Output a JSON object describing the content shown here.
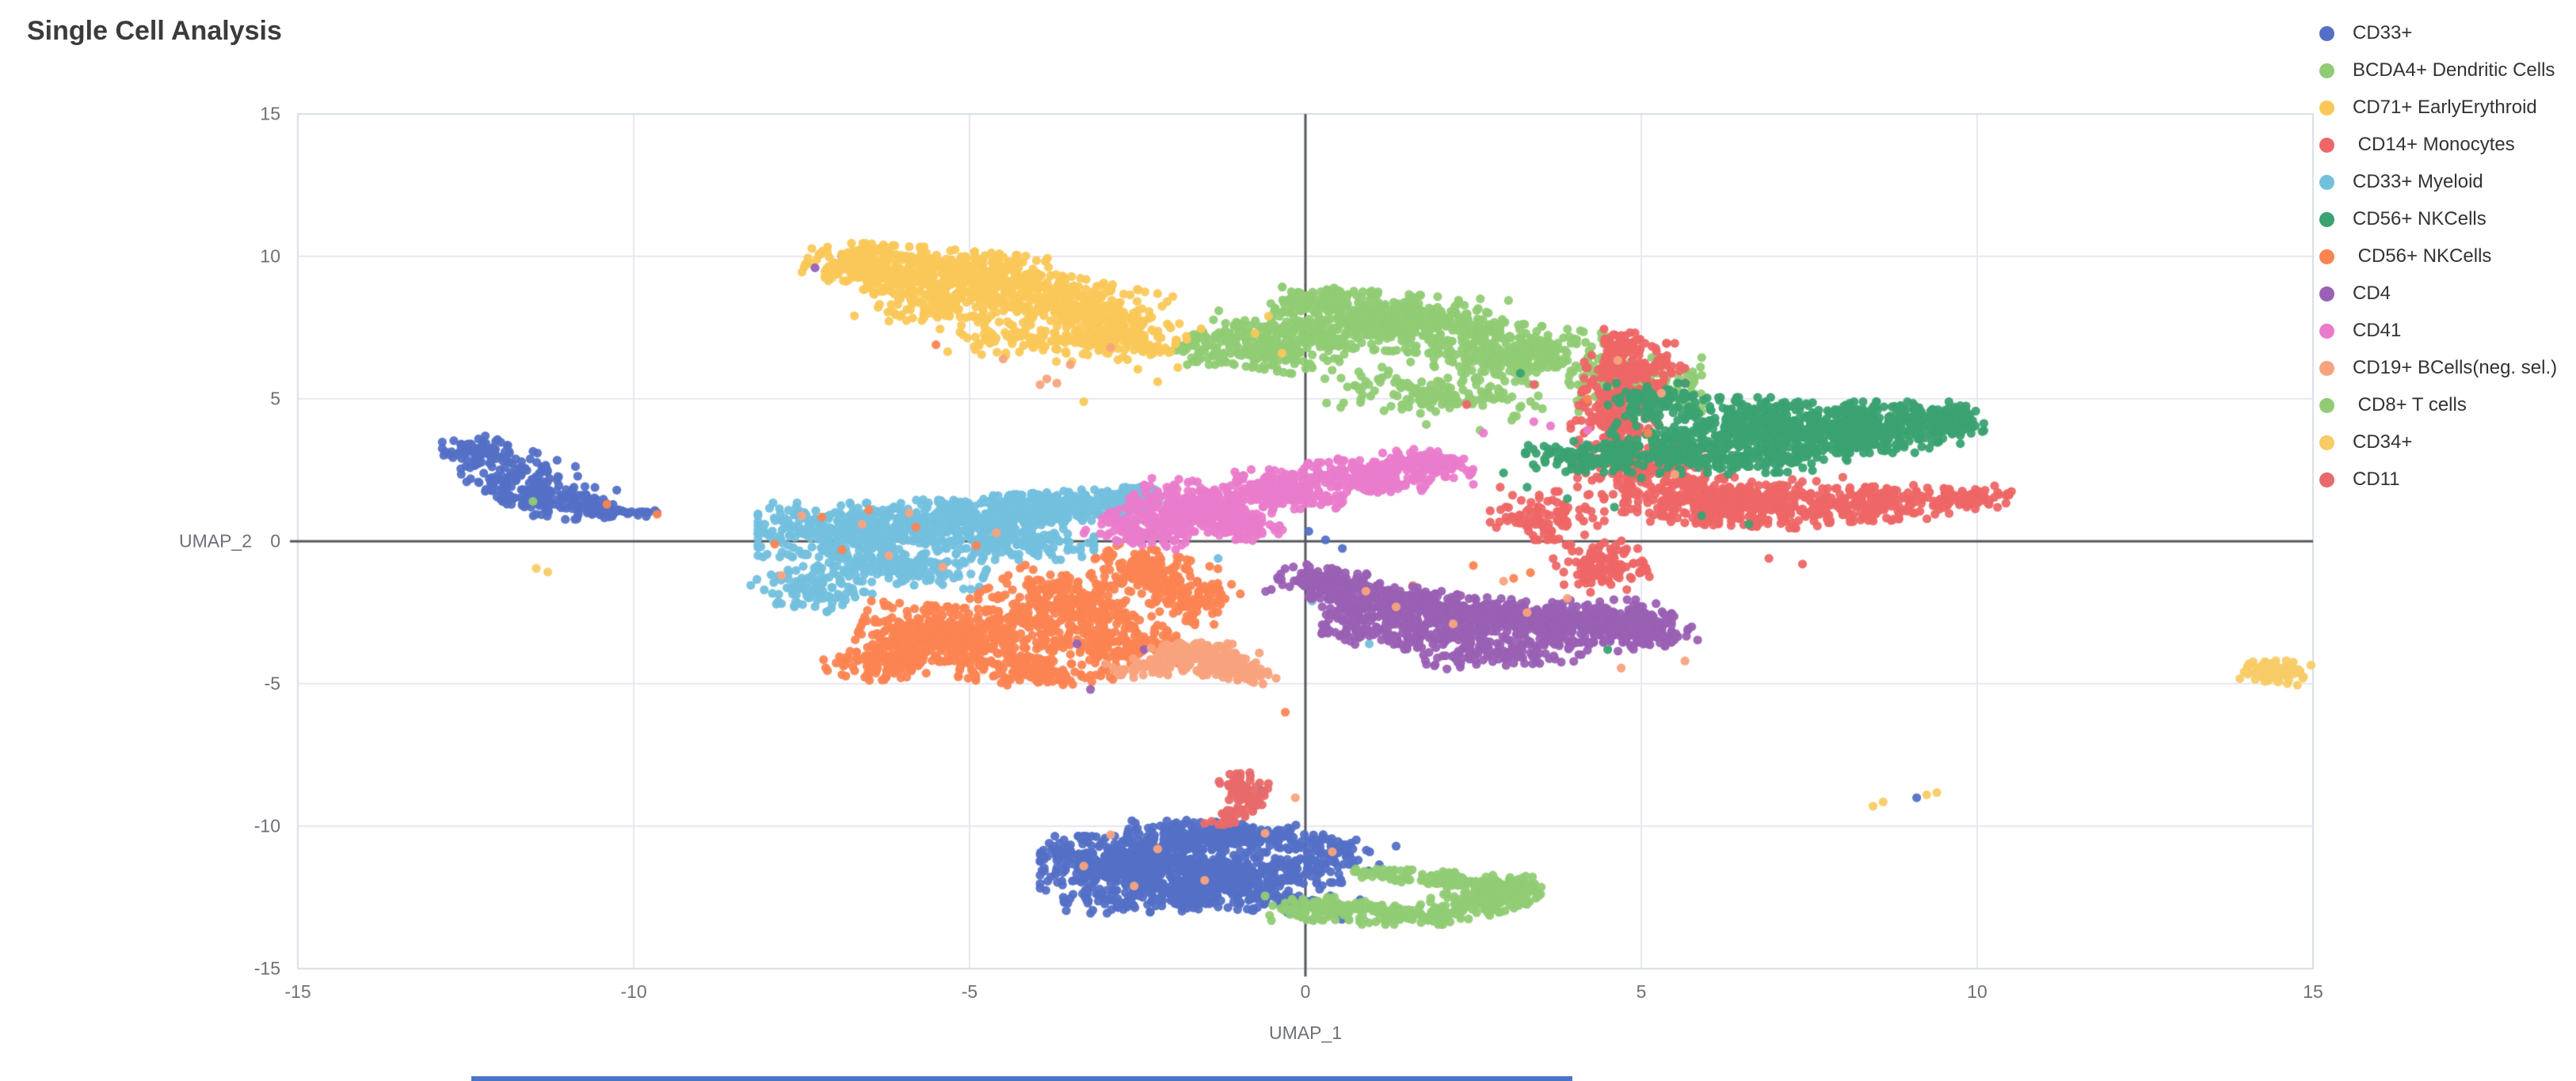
{
  "title": "Single Cell Analysis",
  "axes": {
    "x_label": "UMAP_1",
    "y_label": "UMAP_2",
    "x_ticks": [
      -15,
      -10,
      -5,
      0,
      5,
      10,
      15
    ],
    "y_ticks": [
      15,
      10,
      5,
      0,
      -5,
      -10,
      -15
    ],
    "x_range": [
      -15,
      15
    ],
    "y_range": [
      -15,
      15
    ]
  },
  "colors": {
    "grid_line": "#E4E8F1",
    "plot_border": "#D7DCE8",
    "zero_line": "#54575C",
    "tick_text": "#6E7079",
    "title_text": "#3b3b3b",
    "legend_text": "#333333",
    "bottom_strip": "#4a73c9",
    "background": "#ffffff"
  },
  "chart_data": {
    "type": "scatter",
    "title": "Single Cell Analysis",
    "xlabel": "UMAP_1",
    "ylabel": "UMAP_2",
    "xlim": [
      -15,
      15
    ],
    "ylim": [
      -15,
      15
    ],
    "grid": true,
    "legend_position": "right",
    "point_radius_px": 5.6,
    "cluster_format": "cx,cy,rx,ry,rot_deg,n  (gaussian blob in data coords)",
    "series": [
      {
        "name": "CD33+",
        "color": "#5470C6",
        "clusters": [
          [
            -12.35,
            3.15,
            0.5,
            0.55,
            0,
            70
          ],
          [
            -11.8,
            2.3,
            0.75,
            0.85,
            -40,
            100
          ],
          [
            -11.25,
            1.45,
            0.95,
            0.6,
            -15,
            130
          ],
          [
            -10.3,
            1.05,
            0.65,
            0.2,
            -6,
            40
          ],
          [
            -2.6,
            -11.3,
            1.35,
            0.95,
            0,
            520
          ],
          [
            -1.2,
            -10.35,
            1.45,
            0.5,
            -6,
            260
          ],
          [
            -1.0,
            -11.8,
            1.5,
            0.85,
            8,
            320
          ],
          [
            -2.1,
            -12.5,
            1.5,
            0.5,
            4,
            140
          ],
          [
            0.3,
            -11.0,
            0.75,
            0.6,
            0,
            70
          ],
          [
            -0.2,
            -12.7,
            0.95,
            0.4,
            -15,
            60
          ]
        ],
        "points": [
          [
            9.1,
            -9.0
          ],
          [
            -6.9,
            10.0
          ],
          [
            -5.3,
            1.0
          ],
          [
            -5.15,
            0.7
          ],
          [
            0.05,
            0.35
          ],
          [
            0.3,
            0.05
          ],
          [
            0.55,
            -0.25
          ],
          [
            4.1,
            -3.0
          ],
          [
            2.75,
            -12.1
          ],
          [
            1.35,
            -10.7
          ],
          [
            1.1,
            -11.35
          ],
          [
            -0.65,
            -8.75
          ]
        ]
      },
      {
        "name": "BCDA4+ Dendritic Cells",
        "color": "#91CC75",
        "clusters": [
          [
            1.2,
            7.7,
            1.7,
            1.0,
            -8,
            520
          ],
          [
            -0.5,
            6.9,
            1.15,
            0.85,
            -20,
            230
          ],
          [
            3.2,
            6.6,
            1.5,
            1.0,
            -15,
            310
          ],
          [
            2.0,
            5.2,
            1.6,
            0.75,
            -10,
            150
          ],
          [
            4.9,
            5.5,
            1.0,
            0.95,
            0,
            150
          ],
          [
            -1.5,
            6.8,
            0.55,
            0.6,
            0,
            55
          ],
          [
            0.3,
            8.5,
            0.85,
            0.4,
            8,
            70
          ]
        ],
        "points": [
          [
            -11.5,
            1.4
          ],
          [
            2.6,
            3.9
          ],
          [
            3.1,
            4.4
          ],
          [
            5.6,
            4.9
          ],
          [
            1.8,
            4.1
          ]
        ]
      },
      {
        "name": "CD71+ EarlyErythroid",
        "color": "#FAC858",
        "clusters": [
          [
            -6.3,
            9.6,
            1.15,
            0.8,
            -10,
            300
          ],
          [
            -4.9,
            9.3,
            1.25,
            0.85,
            -12,
            320
          ],
          [
            -3.6,
            8.3,
            1.35,
            0.95,
            -25,
            320
          ],
          [
            -2.8,
            7.2,
            0.95,
            0.85,
            -30,
            190
          ],
          [
            -5.6,
            8.2,
            0.95,
            0.65,
            -20,
            100
          ],
          [
            -4.3,
            7.0,
            0.95,
            0.55,
            -12,
            70
          ]
        ],
        "points": [
          [
            -0.75,
            7.3
          ],
          [
            -0.55,
            7.9
          ],
          [
            -0.35,
            6.6
          ],
          [
            -3.3,
            4.9
          ],
          [
            -1.9,
            6.1
          ],
          [
            -2.2,
            5.6
          ]
        ]
      },
      {
        "name": " CD14+ Monocytes",
        "color": "#EE6666",
        "clusters": [
          [
            4.9,
            5.9,
            0.75,
            1.05,
            0,
            170
          ],
          [
            4.6,
            4.2,
            0.65,
            1.2,
            0,
            150
          ],
          [
            5.0,
            2.6,
            0.95,
            0.95,
            0,
            170
          ],
          [
            6.3,
            1.4,
            1.55,
            0.85,
            -5,
            420
          ],
          [
            8.3,
            1.3,
            1.25,
            0.6,
            5,
            210
          ],
          [
            9.9,
            1.5,
            0.75,
            0.4,
            10,
            70
          ],
          [
            4.4,
            -0.9,
            0.65,
            0.85,
            10,
            120
          ],
          [
            3.6,
            0.9,
            0.85,
            0.85,
            0,
            100
          ],
          [
            4.7,
            7.0,
            0.35,
            0.45,
            0,
            35
          ]
        ],
        "points": [
          [
            8.0,
            2.25
          ],
          [
            4.6,
            -3.3
          ],
          [
            2.9,
            1.9
          ],
          [
            2.4,
            4.8
          ],
          [
            3.4,
            5.5
          ],
          [
            6.9,
            -0.6
          ],
          [
            7.4,
            -0.8
          ]
        ]
      },
      {
        "name": "CD33+ Myeloid",
        "color": "#73C0DE",
        "clusters": [
          [
            -6.8,
            0.4,
            1.35,
            0.95,
            0,
            380
          ],
          [
            -5.0,
            0.8,
            1.45,
            0.75,
            8,
            380
          ],
          [
            -3.6,
            1.2,
            1.05,
            0.55,
            12,
            220
          ],
          [
            -6.0,
            -0.9,
            1.25,
            0.6,
            -10,
            170
          ],
          [
            -7.3,
            -1.7,
            0.75,
            0.8,
            30,
            100
          ],
          [
            -2.6,
            1.5,
            0.65,
            0.4,
            10,
            90
          ],
          [
            -4.4,
            -0.1,
            1.25,
            0.55,
            0,
            130
          ]
        ],
        "points": [
          [
            0.1,
            -2.1
          ],
          [
            0.95,
            -3.6
          ],
          [
            2.1,
            -3.1
          ],
          [
            2.5,
            -3.3
          ],
          [
            -1.3,
            -0.6
          ]
        ]
      },
      {
        "name": "CD56+ NKCells",
        "color": "#3BA272",
        "clusters": [
          [
            8.3,
            4.0,
            1.45,
            0.9,
            0,
            480
          ],
          [
            9.55,
            4.2,
            0.55,
            0.55,
            0,
            90
          ],
          [
            6.6,
            4.2,
            0.95,
            0.85,
            0,
            210
          ],
          [
            5.6,
            3.3,
            1.15,
            0.75,
            -15,
            170
          ],
          [
            4.3,
            2.9,
            1.05,
            0.55,
            -10,
            120
          ],
          [
            6.8,
            2.95,
            1.25,
            0.55,
            5,
            150
          ],
          [
            5.3,
            4.9,
            0.85,
            0.65,
            0,
            100
          ]
        ],
        "points": [
          [
            3.3,
            1.9
          ],
          [
            3.9,
            1.5
          ],
          [
            4.6,
            1.2
          ],
          [
            5.9,
            0.9
          ],
          [
            6.6,
            0.6
          ],
          [
            4.5,
            -3.8
          ],
          [
            3.6,
            -3.0
          ],
          [
            2.95,
            2.4
          ],
          [
            3.2,
            5.9
          ]
        ]
      },
      {
        "name": " CD56+ NKCells",
        "color": "#FC8452",
        "clusters": [
          [
            -5.1,
            -3.3,
            1.55,
            0.95,
            -10,
            470
          ],
          [
            -3.6,
            -2.2,
            1.25,
            0.85,
            -35,
            270
          ],
          [
            -2.4,
            -1.05,
            0.85,
            0.7,
            -35,
            170
          ],
          [
            -6.3,
            -4.3,
            0.85,
            0.55,
            15,
            120
          ],
          [
            -4.0,
            -4.6,
            1.15,
            0.5,
            -5,
            150
          ],
          [
            -2.8,
            -3.6,
            0.95,
            0.7,
            0,
            170
          ],
          [
            -1.7,
            -2.1,
            0.6,
            0.8,
            -20,
            90
          ]
        ],
        "points": [
          [
            -10.4,
            1.3
          ],
          [
            -9.65,
            0.95
          ],
          [
            -7.2,
            0.85
          ],
          [
            -6.5,
            1.1
          ],
          [
            -5.8,
            0.5
          ],
          [
            -6.9,
            -0.3
          ],
          [
            -4.9,
            -0.15
          ],
          [
            -7.9,
            -0.1
          ],
          [
            0.9,
            -1.8
          ],
          [
            3.1,
            -1.3
          ],
          [
            3.35,
            -1.1
          ],
          [
            2.5,
            -0.85
          ],
          [
            1.6,
            -1.55
          ],
          [
            4.2,
            5.0
          ],
          [
            5.1,
            3.8
          ],
          [
            -5.5,
            6.9
          ],
          [
            -0.3,
            -6.0
          ]
        ]
      },
      {
        "name": "CD4",
        "color": "#9A60B4",
        "clusters": [
          [
            0.3,
            -1.5,
            0.75,
            0.55,
            -20,
            150
          ],
          [
            1.5,
            -2.2,
            1.25,
            0.6,
            -20,
            230
          ],
          [
            2.8,
            -2.6,
            1.25,
            0.6,
            -10,
            230
          ],
          [
            4.3,
            -2.8,
            1.15,
            0.75,
            0,
            280
          ],
          [
            1.6,
            -3.3,
            1.35,
            0.5,
            -8,
            150
          ],
          [
            3.0,
            -3.85,
            1.25,
            0.5,
            8,
            130
          ],
          [
            5.05,
            -3.2,
            0.65,
            0.55,
            20,
            90
          ],
          [
            0.8,
            -2.6,
            0.55,
            0.6,
            0,
            70
          ]
        ],
        "points": [
          [
            -7.3,
            9.6
          ],
          [
            -3.4,
            -3.6
          ],
          [
            -3.2,
            -5.2
          ],
          [
            -2.4,
            -3.8
          ],
          [
            5.75,
            -3.0
          ]
        ]
      },
      {
        "name": "CD41",
        "color": "#EA7CCC",
        "clusters": [
          [
            -1.6,
            1.2,
            1.05,
            0.8,
            -25,
            300
          ],
          [
            -0.3,
            1.8,
            0.95,
            0.55,
            -25,
            210
          ],
          [
            0.9,
            2.3,
            0.95,
            0.5,
            -18,
            210
          ],
          [
            1.9,
            2.75,
            0.65,
            0.4,
            -18,
            120
          ],
          [
            -2.4,
            0.4,
            0.75,
            0.55,
            -30,
            120
          ],
          [
            -0.9,
            0.6,
            0.65,
            0.5,
            -20,
            90
          ]
        ],
        "points": [
          [
            3.4,
            4.2
          ],
          [
            3.65,
            4.05
          ],
          [
            2.65,
            3.8
          ],
          [
            4.2,
            3.9
          ],
          [
            1.15,
            3.1
          ],
          [
            2.5,
            2.0
          ]
        ]
      },
      {
        "name": "CD19+ BCells(neg. sel.)",
        "color": "#F8A37E",
        "clusters": [
          [
            -1.55,
            -4.05,
            0.8,
            0.55,
            -15,
            160
          ],
          [
            -0.95,
            -4.6,
            0.55,
            0.4,
            -30,
            70
          ],
          [
            -2.4,
            -4.4,
            0.55,
            0.35,
            10,
            50
          ]
        ],
        "points": [
          [
            -7.5,
            0.9
          ],
          [
            -6.6,
            0.6
          ],
          [
            -5.9,
            1.0
          ],
          [
            -6.2,
            -0.5
          ],
          [
            -5.4,
            -0.9
          ],
          [
            -4.6,
            0.3
          ],
          [
            -7.8,
            -1.2
          ],
          [
            -2.9,
            -10.3
          ],
          [
            -2.2,
            -10.8
          ],
          [
            -3.3,
            -11.4
          ],
          [
            -1.5,
            -11.9
          ],
          [
            -0.6,
            -10.25
          ],
          [
            -2.55,
            -12.1
          ],
          [
            0.4,
            -10.9
          ],
          [
            0.9,
            -1.75
          ],
          [
            2.95,
            -1.4
          ],
          [
            3.3,
            -2.5
          ],
          [
            4.7,
            -4.45
          ],
          [
            5.65,
            -4.2
          ],
          [
            2.2,
            -2.9
          ],
          [
            1.35,
            -2.3
          ],
          [
            3.9,
            -2.0
          ],
          [
            -3.85,
            5.7
          ],
          [
            -3.7,
            5.55
          ],
          [
            -3.95,
            5.5
          ],
          [
            -4.5,
            6.4
          ],
          [
            -3.5,
            6.2
          ],
          [
            -2.9,
            6.8
          ],
          [
            4.65,
            6.35
          ],
          [
            5.3,
            5.2
          ],
          [
            5.5,
            2.35
          ],
          [
            -0.8,
            -4.9
          ],
          [
            -0.15,
            -9.0
          ]
        ]
      },
      {
        "name": " CD8+ T cells",
        "color": "#91CC75",
        "clusters": [
          [
            0.3,
            -12.9,
            0.85,
            0.4,
            5,
            100
          ],
          [
            1.6,
            -13.1,
            0.95,
            0.35,
            0,
            120
          ],
          [
            2.7,
            -12.55,
            0.75,
            0.5,
            35,
            140
          ],
          [
            3.0,
            -12.2,
            0.5,
            0.4,
            20,
            90
          ],
          [
            2.1,
            -11.9,
            0.65,
            0.3,
            -10,
            70
          ],
          [
            1.2,
            -11.7,
            0.5,
            0.28,
            -10,
            40
          ]
        ],
        "points": [
          [
            -0.3,
            -12.7
          ],
          [
            -0.6,
            -12.45
          ],
          [
            0.75,
            -11.5
          ]
        ]
      },
      {
        "name": "CD34+",
        "color": "#F8CB67",
        "clusters": [
          [
            14.45,
            -4.55,
            0.45,
            0.4,
            -15,
            75
          ]
        ],
        "points": [
          [
            8.45,
            -9.3
          ],
          [
            8.6,
            -9.15
          ],
          [
            9.25,
            -8.9
          ],
          [
            9.4,
            -8.82
          ],
          [
            -11.45,
            -0.95
          ],
          [
            -11.28,
            -1.08
          ]
        ]
      },
      {
        "name": "CD11",
        "color": "#E96A6A",
        "clusters": [
          [
            -0.95,
            -8.6,
            0.3,
            0.45,
            10,
            45
          ],
          [
            -1.05,
            -9.5,
            0.25,
            0.5,
            -15,
            40
          ],
          [
            -0.78,
            -9.0,
            0.22,
            0.32,
            0,
            25
          ]
        ],
        "points": [
          [
            -0.55,
            -8.5
          ],
          [
            -1.5,
            -9.9
          ]
        ]
      }
    ]
  }
}
